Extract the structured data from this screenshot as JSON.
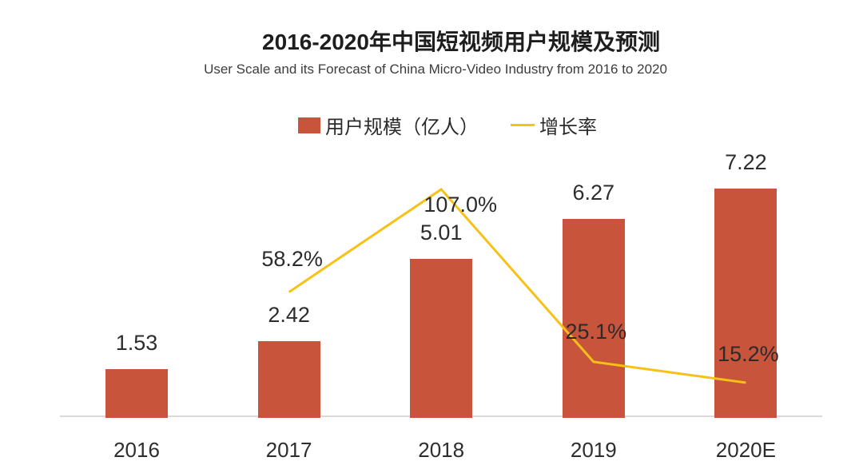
{
  "header": {
    "title": "2016-2020年中国短视频用户规模及预测",
    "subtitle": "User Scale and its Forecast of China Micro-Video Industry from 2016 to 2020"
  },
  "colors": {
    "bar": "#C8543C",
    "line": "#F7C117",
    "axis": "#D9D9D9",
    "title_text": "#1E1E1E",
    "label_text": "#2D2D2D"
  },
  "chart_data": {
    "type": "bar",
    "title": "2016-2020年中国短视频用户规模及预测",
    "subtitle": "User Scale and its Forecast of China Micro-Video Industry from 2016 to 2020",
    "categories": [
      "2016",
      "2017",
      "2018",
      "2019",
      "2020E"
    ],
    "series": [
      {
        "name": "用户规模（亿人）",
        "type": "bar",
        "color": "#C8543C",
        "values": [
          1.53,
          2.42,
          5.01,
          6.27,
          7.22
        ],
        "labels": [
          "1.53",
          "2.42",
          "5.01",
          "6.27",
          "7.22"
        ]
      },
      {
        "name": "增长率",
        "type": "line",
        "color": "#F7C117",
        "unit": "%",
        "values": [
          null,
          58.2,
          107.0,
          25.1,
          15.2
        ],
        "labels": [
          null,
          "58.2%",
          "107.0%",
          "25.1%",
          "15.2%"
        ]
      }
    ],
    "xlabel": "",
    "ylabel": "",
    "axis_ranges": {
      "bar_axis": [
        0,
        8
      ],
      "line_axis_pct": [
        0,
        120
      ]
    },
    "grid": false,
    "y_axis_visible": false,
    "legend_position": "top-center",
    "value_labels": "above"
  }
}
